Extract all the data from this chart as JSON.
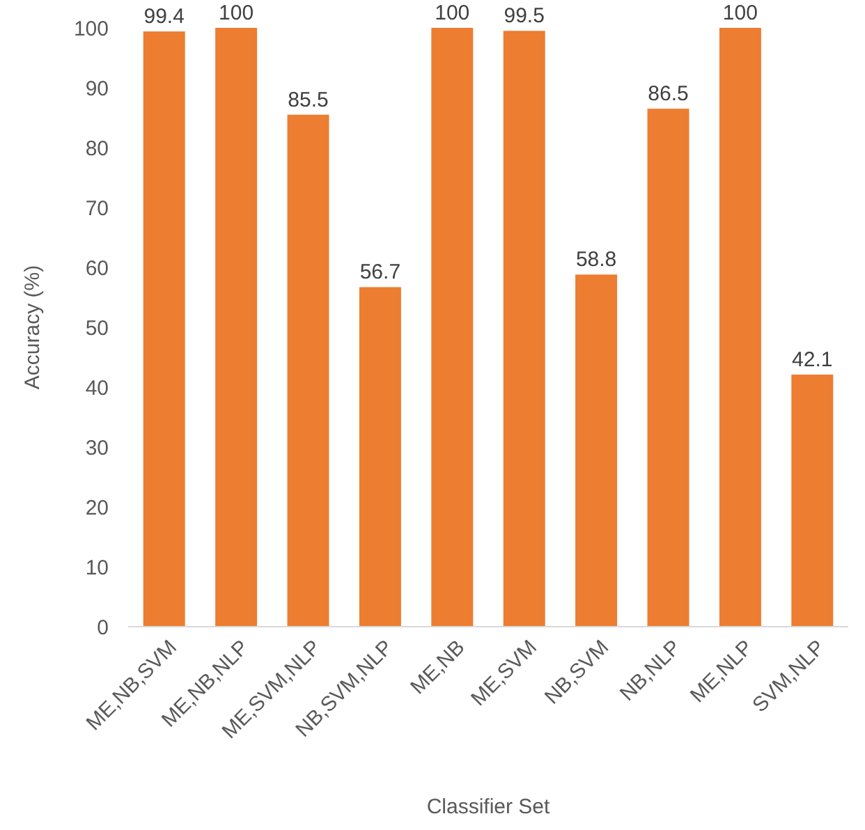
{
  "chart_data": {
    "type": "bar",
    "xlabel": "Classifier Set",
    "ylabel": "Accuracy (%)",
    "categories": [
      "ME,NB,SVM",
      "ME,NB,NLP",
      "ME,SVM,NLP",
      "NB,SVM,NLP",
      "ME,NB",
      "ME,SVM",
      "NB,SVM",
      "NB,NLP",
      "ME,NLP",
      "SVM,NLP"
    ],
    "values": [
      99.4,
      100,
      85.5,
      56.7,
      100,
      99.5,
      58.8,
      86.5,
      100,
      42.1
    ],
    "color": "#ed7d31",
    "ylim": [
      0,
      100
    ],
    "yticks": [
      0,
      10,
      20,
      30,
      40,
      50,
      60,
      70,
      80,
      90,
      100
    ],
    "data_labels": true
  }
}
